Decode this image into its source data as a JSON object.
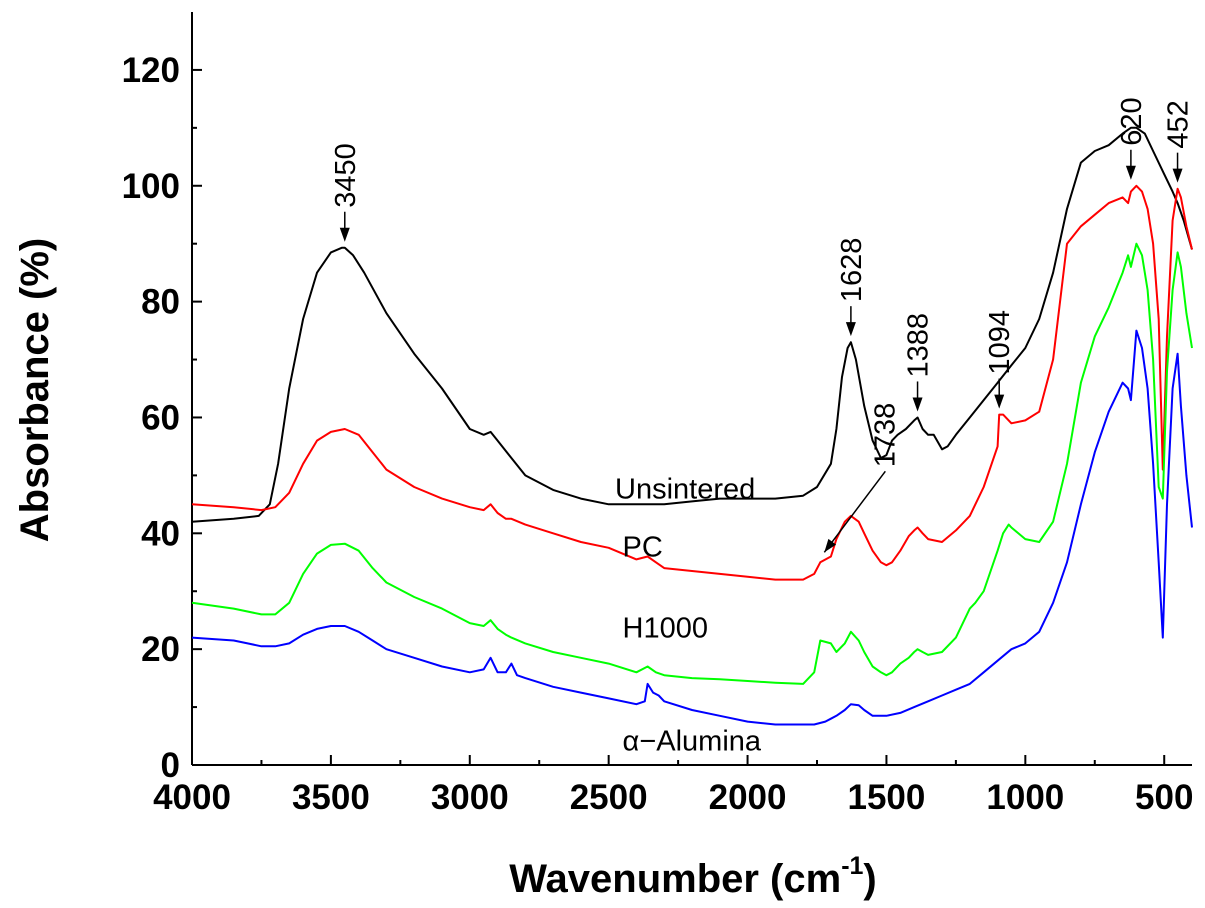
{
  "chart_data": {
    "type": "line",
    "xlabel_main": "Wavenumber (cm",
    "xlabel_sup": "-1",
    "xlabel_end": ")",
    "ylabel": "Absorbance (%)",
    "xlim": [
      4000,
      400
    ],
    "ylim": [
      0,
      130
    ],
    "x_ticks": [
      4000,
      3500,
      3000,
      2500,
      2000,
      1500,
      1000,
      500
    ],
    "y_ticks": [
      0,
      20,
      40,
      60,
      80,
      100,
      120
    ],
    "grid": false,
    "series": [
      {
        "name": "Unsintered",
        "color": "#000000",
        "x": [
          4000,
          3850,
          3760,
          3720,
          3690,
          3650,
          3600,
          3550,
          3500,
          3460,
          3450,
          3420,
          3380,
          3300,
          3200,
          3100,
          3000,
          2950,
          2925,
          2900,
          2850,
          2800,
          2700,
          2600,
          2500,
          2400,
          2300,
          2200,
          2100,
          2000,
          1900,
          1800,
          1750,
          1700,
          1680,
          1660,
          1640,
          1628,
          1610,
          1580,
          1550,
          1520,
          1500,
          1480,
          1460,
          1430,
          1400,
          1388,
          1370,
          1350,
          1330,
          1300,
          1280,
          1250,
          1200,
          1150,
          1100,
          1050,
          1000,
          950,
          900,
          850,
          800,
          750,
          700,
          650,
          620,
          600,
          570,
          540,
          500,
          470,
          452,
          430,
          400
        ],
        "y": [
          42,
          42.5,
          43,
          45,
          52,
          65,
          77,
          85,
          88.5,
          89.3,
          89.3,
          88,
          85,
          78,
          71,
          65,
          58,
          57,
          57.5,
          56,
          53,
          50,
          47.5,
          46,
          45,
          45,
          45,
          45.5,
          46,
          46,
          46,
          46.5,
          48,
          52,
          58,
          67,
          72,
          73,
          70,
          62,
          56,
          53,
          53.5,
          56,
          57,
          58,
          59.5,
          60,
          58,
          57,
          57,
          54.5,
          55,
          57,
          60,
          63,
          66,
          69,
          72,
          77,
          85,
          96,
          104,
          106,
          107,
          109,
          110,
          110,
          109,
          106,
          102,
          99,
          97,
          94,
          89
        ]
      },
      {
        "name": "PC",
        "color": "#ff0000",
        "x": [
          4000,
          3850,
          3750,
          3700,
          3650,
          3600,
          3550,
          3500,
          3450,
          3400,
          3350,
          3300,
          3200,
          3100,
          3000,
          2950,
          2925,
          2900,
          2870,
          2850,
          2800,
          2700,
          2600,
          2500,
          2400,
          2360,
          2330,
          2300,
          2200,
          2100,
          2000,
          1900,
          1800,
          1760,
          1738,
          1700,
          1680,
          1650,
          1628,
          1600,
          1580,
          1550,
          1520,
          1500,
          1480,
          1450,
          1420,
          1400,
          1388,
          1370,
          1350,
          1300,
          1250,
          1200,
          1150,
          1100,
          1094,
          1080,
          1050,
          1000,
          950,
          900,
          850,
          800,
          750,
          700,
          650,
          630,
          620,
          600,
          580,
          560,
          540,
          520,
          505,
          490,
          470,
          452,
          440,
          420,
          400
        ],
        "y": [
          45,
          44.5,
          44,
          44.5,
          47,
          52,
          56,
          57.5,
          58,
          57,
          54,
          51,
          48,
          46,
          44.5,
          44,
          45,
          43.5,
          42.5,
          42.5,
          41.5,
          40,
          38.5,
          37.5,
          35.5,
          36,
          35,
          34,
          33.5,
          33,
          32.5,
          32,
          32,
          33,
          35,
          36,
          39,
          42,
          43,
          42,
          40,
          37,
          35,
          34.5,
          35,
          37,
          39.5,
          40.5,
          41,
          40,
          39,
          38.5,
          40.5,
          43,
          48,
          55,
          60.5,
          60.5,
          59,
          59.5,
          61,
          70,
          90,
          93,
          95,
          97,
          98,
          97,
          99,
          100,
          99,
          96,
          90,
          77,
          51,
          74,
          94,
          99.5,
          98,
          93,
          89
        ]
      },
      {
        "name": "H1000",
        "color": "#00ff00",
        "x": [
          4000,
          3850,
          3750,
          3700,
          3650,
          3600,
          3550,
          3500,
          3450,
          3400,
          3350,
          3300,
          3200,
          3100,
          3000,
          2950,
          2925,
          2900,
          2870,
          2850,
          2800,
          2700,
          2600,
          2500,
          2400,
          2360,
          2330,
          2300,
          2200,
          2100,
          2000,
          1900,
          1800,
          1760,
          1738,
          1700,
          1680,
          1650,
          1628,
          1600,
          1580,
          1550,
          1520,
          1500,
          1480,
          1450,
          1420,
          1400,
          1388,
          1370,
          1350,
          1300,
          1250,
          1200,
          1180,
          1150,
          1100,
          1080,
          1060,
          1050,
          1000,
          950,
          900,
          850,
          800,
          750,
          700,
          650,
          630,
          620,
          600,
          580,
          560,
          540,
          520,
          505,
          490,
          470,
          452,
          440,
          420,
          400
        ],
        "y": [
          28,
          27,
          26,
          26,
          28,
          33,
          36.5,
          38,
          38.2,
          37,
          34,
          31.5,
          29,
          27,
          24.5,
          24,
          25,
          23.5,
          22.5,
          22,
          21,
          19.5,
          18.5,
          17.5,
          16,
          17,
          16,
          15.5,
          15,
          14.8,
          14.5,
          14.2,
          14,
          16,
          21.5,
          21,
          19.5,
          21,
          23,
          21.5,
          19.5,
          17,
          16,
          15.5,
          16,
          17.5,
          18.5,
          19.5,
          20,
          19.5,
          19,
          19.5,
          22,
          27,
          28,
          30,
          37,
          40,
          41.5,
          41,
          39,
          38.5,
          42,
          52,
          66,
          74,
          79,
          85,
          88,
          86,
          90,
          88,
          82,
          70,
          48,
          46,
          68,
          82,
          88.5,
          86,
          78,
          72
        ]
      },
      {
        "name": "α−Alumina",
        "color": "#0000ff",
        "x": [
          4000,
          3850,
          3800,
          3750,
          3700,
          3650,
          3600,
          3550,
          3500,
          3450,
          3400,
          3350,
          3300,
          3200,
          3100,
          3000,
          2950,
          2925,
          2900,
          2870,
          2850,
          2830,
          2800,
          2700,
          2600,
          2500,
          2400,
          2370,
          2360,
          2340,
          2320,
          2300,
          2200,
          2100,
          2000,
          1900,
          1800,
          1760,
          1720,
          1700,
          1680,
          1650,
          1628,
          1600,
          1580,
          1550,
          1500,
          1450,
          1400,
          1350,
          1300,
          1250,
          1200,
          1150,
          1100,
          1050,
          1000,
          950,
          900,
          850,
          800,
          750,
          700,
          650,
          630,
          620,
          600,
          580,
          560,
          540,
          520,
          505,
          490,
          470,
          452,
          440,
          420,
          400
        ],
        "y": [
          22,
          21.5,
          21,
          20.5,
          20.5,
          21,
          22.5,
          23.5,
          24,
          24,
          23,
          21.5,
          20,
          18.5,
          17,
          16,
          16.5,
          18.5,
          16,
          16,
          17.5,
          15.5,
          15,
          13.5,
          12.5,
          11.5,
          10.5,
          11,
          14,
          12.5,
          12,
          11,
          9.5,
          8.5,
          7.5,
          7,
          7,
          7,
          7.5,
          8,
          8.5,
          9.5,
          10.5,
          10.3,
          9.5,
          8.5,
          8.5,
          9,
          10,
          11,
          12,
          13,
          14,
          16,
          18,
          20,
          21,
          23,
          28,
          35,
          45,
          54,
          61,
          66,
          65,
          63,
          75,
          72,
          65,
          52,
          35,
          22,
          45,
          65,
          71,
          62,
          50,
          41
        ]
      }
    ],
    "series_labels": [
      {
        "series": "Unsintered",
        "text": "Unsintered",
        "x": 1760,
        "y": 46
      },
      {
        "series": "PC",
        "text": "PC",
        "x": 2450,
        "y": 36
      },
      {
        "series": "H1000",
        "text": "H1000",
        "x": 2450,
        "y": 22
      },
      {
        "series": "α−Alumina",
        "text": "α−Alumina",
        "x": 2450,
        "y": 2.5
      }
    ],
    "annotations": [
      {
        "text": "3450",
        "x": 3450,
        "y": 89.3
      },
      {
        "text": "1738",
        "x": 1738,
        "y": 35
      },
      {
        "text": "1628",
        "x": 1628,
        "y": 73
      },
      {
        "text": "1388",
        "x": 1388,
        "y": 60
      },
      {
        "text": "1094",
        "x": 1094,
        "y": 60.5
      },
      {
        "text": "620",
        "x": 620,
        "y": 100
      },
      {
        "text": "452",
        "x": 452,
        "y": 99.5
      }
    ]
  }
}
